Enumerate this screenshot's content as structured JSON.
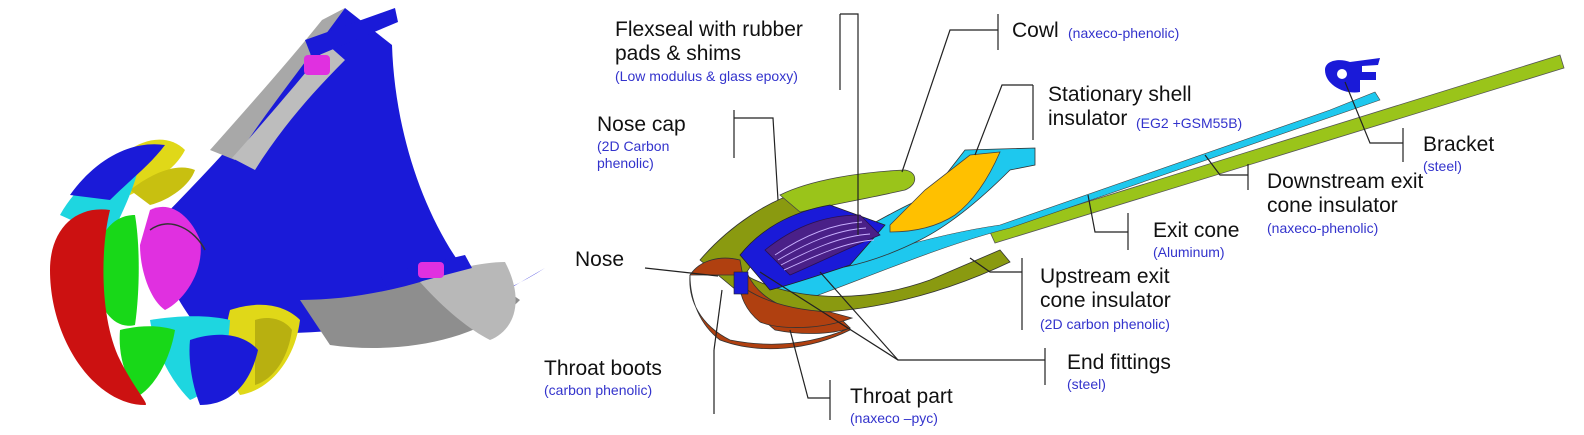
{
  "colors": {
    "blue": "#1a1ad8",
    "red": "#cc1111",
    "cyan": "#1ed6e0",
    "yellow": "#e0d818",
    "green": "#18d818",
    "magenta": "#e030e0",
    "gray": "#a8a8a8",
    "olive": "#8a9a10",
    "lime": "#9ac41a",
    "orange_yellow": "#ffc000",
    "light_blue": "#1ec8ee",
    "rust": "#b04010",
    "purple": "#4a2088",
    "label_blue": "#3333cc"
  },
  "labels": {
    "flexseal": {
      "title": "Flexseal with rubber\npads & shims",
      "material": "(Low modulus & glass epoxy)"
    },
    "cowl": {
      "title": "Cowl",
      "material": "(naxeco-phenolic)"
    },
    "stationary_shell": {
      "title": "Stationary shell\ninsulator",
      "material": "(EG2 +GSM55B)"
    },
    "nose_cap": {
      "title": "Nose cap",
      "material": "(2D Carbon\nphenolic)"
    },
    "bracket": {
      "title": "Bracket",
      "material": "(steel)"
    },
    "downstream": {
      "title": "Downstream exit\ncone insulator",
      "material": "(naxeco-phenolic)"
    },
    "exit_cone": {
      "title": "Exit cone",
      "material": "(Aluminum)"
    },
    "nose": {
      "title": "Nose"
    },
    "upstream": {
      "title": "Upstream exit\ncone insulator",
      "material": "(2D carbon phenolic)"
    },
    "end_fittings": {
      "title": "End fittings",
      "material": "(steel)"
    },
    "throat_boots": {
      "title": "Throat boots",
      "material": "(carbon phenolic)"
    },
    "throat_part": {
      "title": "Throat part",
      "material": "(naxeco –pyc)"
    }
  }
}
